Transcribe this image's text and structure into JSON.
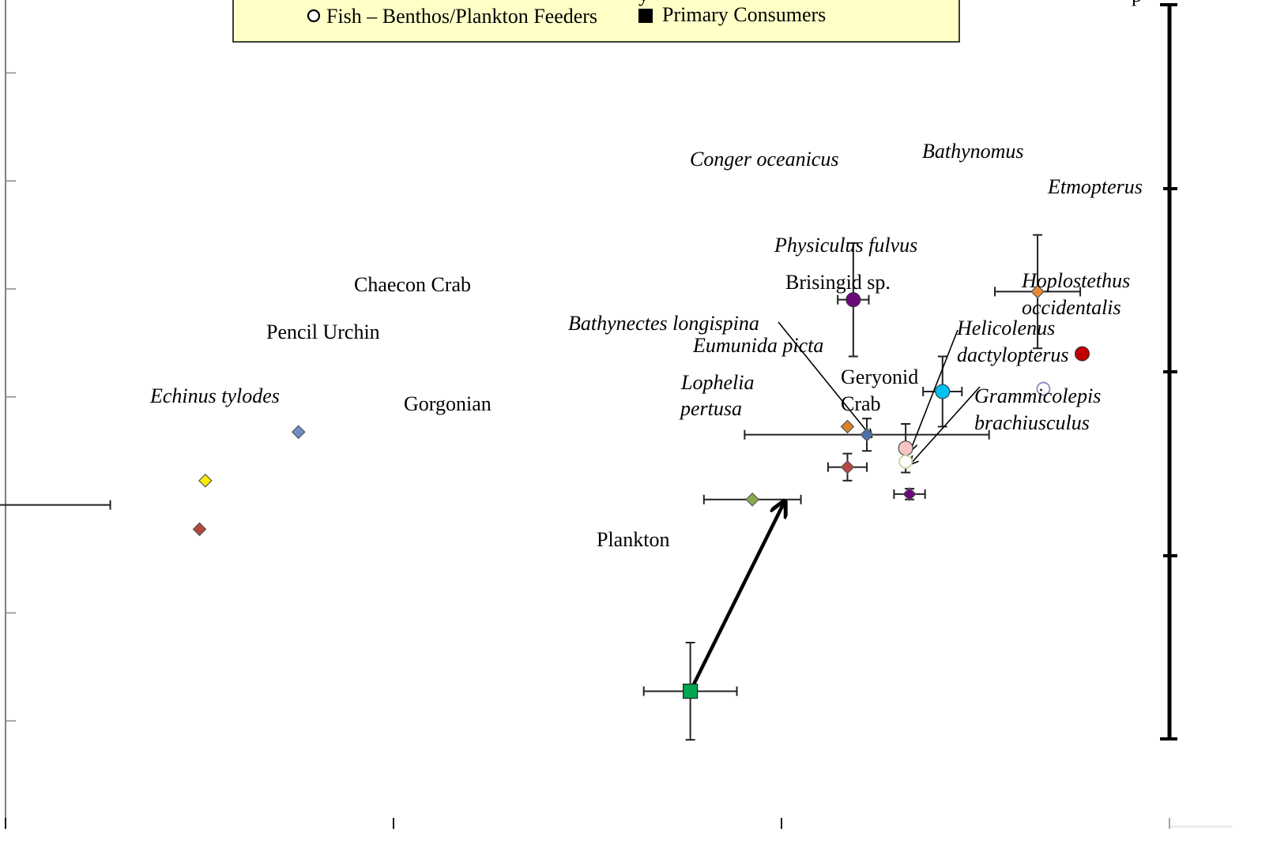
{
  "chart_data": {
    "type": "scatter",
    "x_axis": {
      "range": [
        -5,
        1
      ],
      "ticks": [
        -4,
        -2,
        0
      ]
    },
    "y_axis": {
      "range": [
        -2,
        12
      ]
    },
    "trophic_bar": {
      "ticks": [
        1,
        2,
        3,
        4,
        5
      ]
    },
    "legend": {
      "entries": [
        {
          "marker": "open-circle",
          "label": "Fish – Benthos/Plankton Feeders"
        },
        {
          "marker": "filled-square",
          "label": "Primary Consumers"
        }
      ]
    },
    "points": [
      {
        "label": "Echinus tylodes",
        "italic": true,
        "x": -4.34,
        "y": 6.0,
        "xerr": 0.88,
        "yerr": 0.3,
        "marker": "diamond",
        "color": "#4a72a8"
      },
      {
        "label": "Chaecon Crab",
        "italic": false,
        "x": -2.49,
        "y": 7.35,
        "marker": "diamond",
        "color": "#6f8fc4"
      },
      {
        "label": "Pencil Urchin",
        "italic": false,
        "x": -2.97,
        "y": 6.45,
        "marker": "diamond",
        "color": "#ffee00"
      },
      {
        "label": "Gorgonian",
        "italic": false,
        "x": -3.0,
        "y": 5.55,
        "marker": "diamond",
        "color": "#b8463f"
      },
      {
        "label": "Plankton",
        "italic": false,
        "x": -0.47,
        "y": 2.55,
        "xerr": 0.24,
        "yerr": 0.9,
        "marker": "square",
        "color": "#00a651"
      },
      {
        "label": "Lophelia pertusa",
        "italic": true,
        "x": -0.15,
        "y": 6.1,
        "xerr": 0.25,
        "marker": "diamond",
        "color": "#8aab4c"
      },
      {
        "label": "Conger oceanicus",
        "italic": true,
        "x": 0.37,
        "y": 9.8,
        "xerr": 0.08,
        "yerr": 1.05,
        "marker": "circle",
        "color": "#6a0a7a"
      },
      {
        "label": "Bathynomus",
        "italic": true,
        "x": 1.32,
        "y": 9.95,
        "xerr": 0.22,
        "yerr": 1.05,
        "marker": "diamond",
        "color": "#e8883a"
      },
      {
        "label": "Etmopterus",
        "italic": true,
        "x": 1.55,
        "y": 8.8,
        "marker": "circle",
        "color": "#c00000"
      },
      {
        "label": "Physiculus fulvus",
        "italic": true,
        "x": 0.83,
        "y": 8.1,
        "xerr": 0.1,
        "yerr": 0.65,
        "marker": "circle",
        "color": "#00bff3"
      },
      {
        "label": "Hoplostethus occidentalis",
        "italic": true,
        "x": 1.35,
        "y": 8.15,
        "marker": "open-circle",
        "color": "#8f86c4"
      },
      {
        "label": "Brisingid sp.",
        "italic": false,
        "x": 0.34,
        "y": 7.45,
        "marker": "diamond",
        "color": "#d9822b"
      },
      {
        "label": "Bathynectes longispina",
        "italic": true,
        "x": 0.44,
        "y": 7.3,
        "xerr": 0.63,
        "yerr": 0.3,
        "marker": "diamond",
        "color": "#4a72a8"
      },
      {
        "label": "Eumunida picta",
        "italic": true,
        "x": 0.34,
        "y": 6.7,
        "xerr": 0.1,
        "yerr": 0.25,
        "marker": "diamond",
        "color": "#b8463f"
      },
      {
        "label": "Helicolenus dactylopterus",
        "italic": true,
        "x": 0.64,
        "y": 7.05,
        "yerr": 0.45,
        "marker": "circle",
        "color": "#f6c6c6"
      },
      {
        "label": "Grammicolepis brachiusculus",
        "italic": true,
        "x": 0.64,
        "y": 6.8,
        "marker": "open-circle",
        "color": "#c4d6a0"
      },
      {
        "label": "Geryonid Crab",
        "italic": false,
        "x": 0.66,
        "y": 6.2,
        "xerr": 0.08,
        "yerr": 0.1,
        "marker": "diamond",
        "color": "#6a0a7a"
      }
    ],
    "arrow": {
      "from": "Plankton",
      "to": "Lophelia pertusa"
    }
  }
}
